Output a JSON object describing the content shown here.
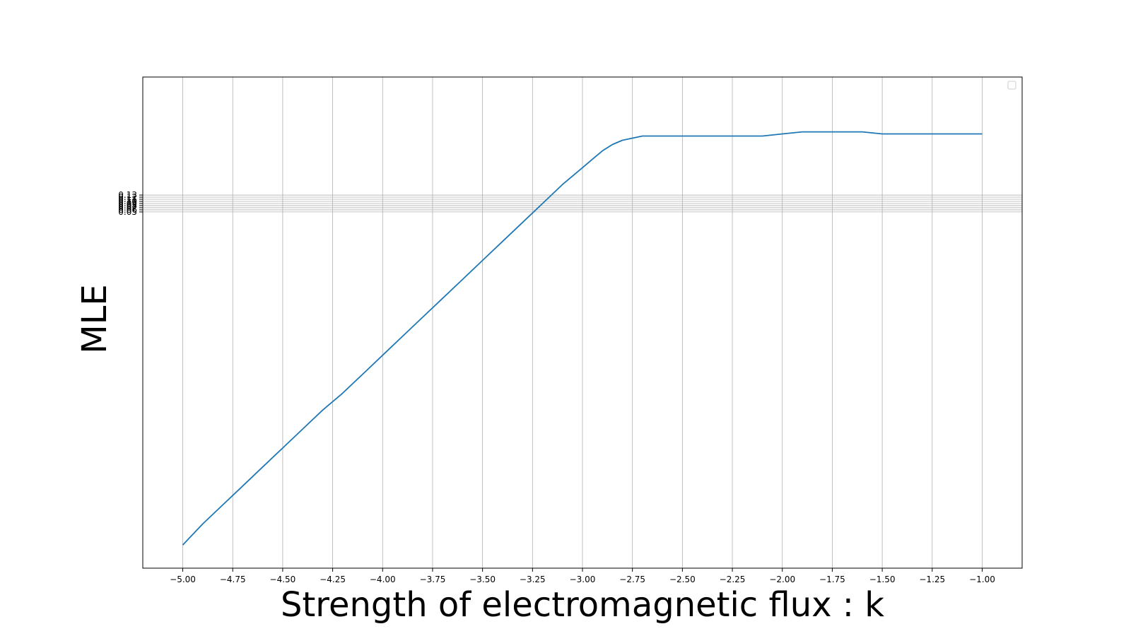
{
  "chart_data": {
    "type": "line",
    "title": "",
    "xlabel": "Strength of electromagnetic flux : k",
    "ylabel": "MLE",
    "xlim": [
      -5.2,
      -0.8
    ],
    "x_ticks": [
      -5.0,
      -4.75,
      -4.5,
      -4.25,
      -4.0,
      -3.75,
      -3.5,
      -3.25,
      -3.0,
      -2.75,
      -2.5,
      -2.25,
      -2.0,
      -1.75,
      -1.5,
      -1.25,
      -1.0
    ],
    "x_tick_labels": [
      "−5.00",
      "−4.75",
      "−4.50",
      "−4.25",
      "−4.00",
      "−3.75",
      "−3.50",
      "−3.25",
      "−3.00",
      "−2.75",
      "−2.50",
      "−2.25",
      "−2.00",
      "−1.75",
      "−1.50",
      "−1.25",
      "−1.00"
    ],
    "y_ticks": [
      0.05,
      0.06,
      0.07,
      0.08,
      0.09,
      0.1,
      0.11,
      0.12,
      0.13
    ],
    "y_tick_labels": [
      "0.05",
      "0.06",
      "0.07",
      "0.08",
      "0.09",
      "0.10",
      "0.11",
      "0.12",
      "0.13"
    ],
    "ylim": [
      -1.64,
      0.69
    ],
    "grid": true,
    "legend": "top-right (empty)",
    "series_color": "#1f77b4",
    "series": [
      {
        "x": [
          -5.0,
          -4.9,
          -4.8,
          -4.7,
          -4.6,
          -4.5,
          -4.4,
          -4.3,
          -4.2,
          -4.1,
          -4.0,
          -3.9,
          -3.8,
          -3.7,
          -3.6,
          -3.5,
          -3.4,
          -3.3,
          -3.2,
          -3.1,
          -3.0,
          -2.95,
          -2.9,
          -2.85,
          -2.8,
          -2.75,
          -2.7,
          -2.6,
          -2.5,
          -2.4,
          -2.3,
          -2.2,
          -2.1,
          -2.0,
          -1.9,
          -1.8,
          -1.7,
          -1.6,
          -1.5,
          -1.4,
          -1.3,
          -1.2,
          -1.1,
          -1.0
        ],
        "y": [
          -1.53,
          -1.43,
          -1.34,
          -1.25,
          -1.16,
          -1.07,
          -0.98,
          -0.89,
          -0.81,
          -0.72,
          -0.63,
          -0.54,
          -0.45,
          -0.36,
          -0.27,
          -0.18,
          -0.09,
          0.0,
          0.09,
          0.18,
          0.26,
          0.3,
          0.34,
          0.37,
          0.39,
          0.4,
          0.41,
          0.41,
          0.41,
          0.41,
          0.41,
          0.41,
          0.41,
          0.42,
          0.43,
          0.43,
          0.43,
          0.43,
          0.42,
          0.42,
          0.42,
          0.42,
          0.42,
          0.42
        ]
      }
    ]
  }
}
